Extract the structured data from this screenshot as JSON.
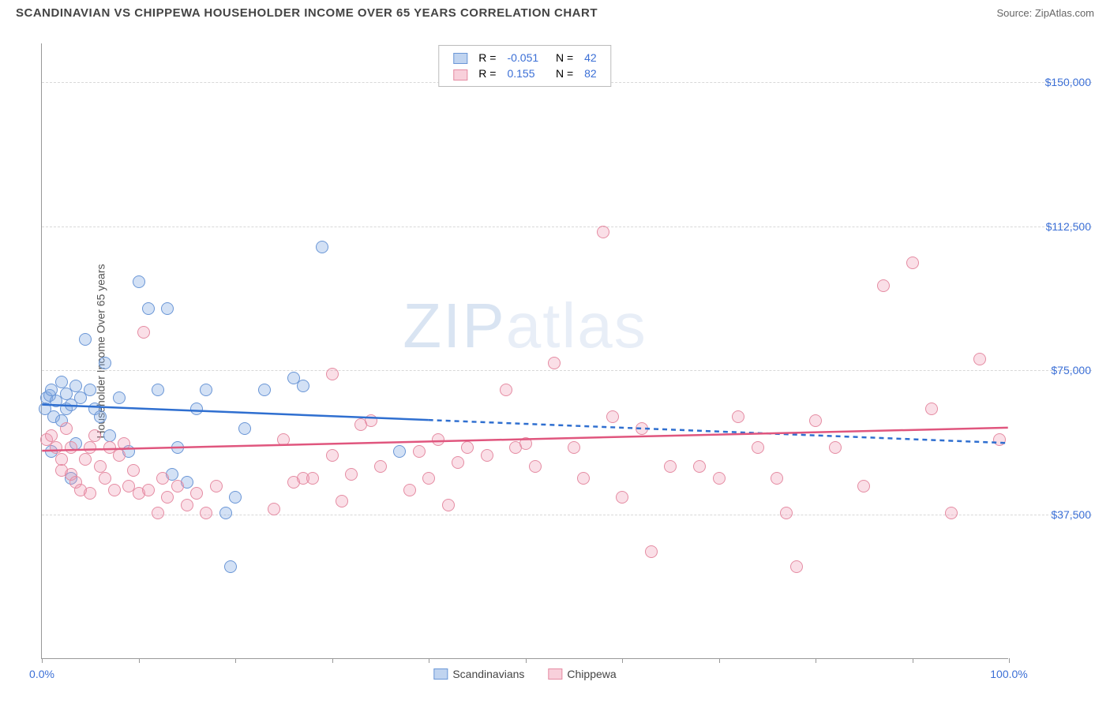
{
  "header": {
    "title": "SCANDINAVIAN VS CHIPPEWA HOUSEHOLDER INCOME OVER 65 YEARS CORRELATION CHART",
    "source": "Source: ZipAtlas.com"
  },
  "chart": {
    "type": "scatter",
    "y_axis_label": "Householder Income Over 65 years",
    "watermark": "ZIPatlas",
    "xlim": [
      0,
      100
    ],
    "ylim": [
      0,
      160000
    ],
    "x_ticks": [
      0,
      10,
      20,
      30,
      40,
      50,
      60,
      70,
      80,
      90,
      100
    ],
    "x_tick_labels": {
      "0": "0.0%",
      "100": "100.0%"
    },
    "y_gridlines": [
      37500,
      75000,
      112500,
      150000
    ],
    "y_tick_labels": {
      "37500": "$37,500",
      "75000": "$75,000",
      "112500": "$112,500",
      "150000": "$150,000"
    },
    "grid_color": "#d8d8d8",
    "background_color": "#ffffff",
    "series": [
      {
        "name": "Scandinavians",
        "color_fill": "rgba(130,170,225,0.35)",
        "color_stroke": "#6a96d6",
        "trend_color": "#2f6fd0",
        "R": "-0.051",
        "N": "42",
        "trend_solid": {
          "x1": 0,
          "y1": 66000,
          "x2": 40,
          "y2": 62000
        },
        "trend_dash": {
          "x1": 40,
          "y1": 62000,
          "x2": 100,
          "y2": 56000
        },
        "points": [
          [
            0.3,
            65000
          ],
          [
            0.5,
            68000
          ],
          [
            0.8,
            68500
          ],
          [
            1,
            54000
          ],
          [
            1,
            70000
          ],
          [
            1.2,
            63000
          ],
          [
            1.5,
            67000
          ],
          [
            2,
            62000
          ],
          [
            2,
            72000
          ],
          [
            2.5,
            69000
          ],
          [
            2.5,
            65000
          ],
          [
            3,
            66000
          ],
          [
            3,
            47000
          ],
          [
            3.5,
            56000
          ],
          [
            3.5,
            71000
          ],
          [
            4,
            68000
          ],
          [
            4.5,
            83000
          ],
          [
            5,
            70000
          ],
          [
            5.5,
            65000
          ],
          [
            6,
            63000
          ],
          [
            6.5,
            77000
          ],
          [
            7,
            58000
          ],
          [
            8,
            68000
          ],
          [
            9,
            54000
          ],
          [
            10,
            98000
          ],
          [
            11,
            91000
          ],
          [
            12,
            70000
          ],
          [
            13,
            91000
          ],
          [
            13.5,
            48000
          ],
          [
            14,
            55000
          ],
          [
            15,
            46000
          ],
          [
            16,
            65000
          ],
          [
            17,
            70000
          ],
          [
            19,
            38000
          ],
          [
            19.5,
            24000
          ],
          [
            20,
            42000
          ],
          [
            21,
            60000
          ],
          [
            23,
            70000
          ],
          [
            26,
            73000
          ],
          [
            27,
            71000
          ],
          [
            29,
            107000
          ],
          [
            37,
            54000
          ]
        ]
      },
      {
        "name": "Chippewa",
        "color_fill": "rgba(240,150,175,0.3)",
        "color_stroke": "#e58ca3",
        "trend_color": "#e0567e",
        "R": "0.155",
        "N": "82",
        "trend_solid": {
          "x1": 0,
          "y1": 54000,
          "x2": 100,
          "y2": 60000
        },
        "trend_dash": null,
        "points": [
          [
            0.5,
            57000
          ],
          [
            1,
            58000
          ],
          [
            1.5,
            55000
          ],
          [
            2,
            49000
          ],
          [
            2,
            52000
          ],
          [
            2.5,
            60000
          ],
          [
            3,
            55000
          ],
          [
            3,
            48000
          ],
          [
            3.5,
            46000
          ],
          [
            4,
            44000
          ],
          [
            4.5,
            52000
          ],
          [
            5,
            55000
          ],
          [
            5,
            43000
          ],
          [
            5.5,
            58000
          ],
          [
            6,
            50000
          ],
          [
            6.5,
            47000
          ],
          [
            7,
            55000
          ],
          [
            7.5,
            44000
          ],
          [
            8,
            53000
          ],
          [
            8.5,
            56000
          ],
          [
            9,
            45000
          ],
          [
            9.5,
            49000
          ],
          [
            10,
            43000
          ],
          [
            10.5,
            85000
          ],
          [
            11,
            44000
          ],
          [
            12,
            38000
          ],
          [
            12.5,
            47000
          ],
          [
            13,
            42000
          ],
          [
            14,
            45000
          ],
          [
            15,
            40000
          ],
          [
            16,
            43000
          ],
          [
            17,
            38000
          ],
          [
            18,
            45000
          ],
          [
            24,
            39000
          ],
          [
            25,
            57000
          ],
          [
            26,
            46000
          ],
          [
            27,
            47000
          ],
          [
            28,
            47000
          ],
          [
            30,
            53000
          ],
          [
            30,
            74000
          ],
          [
            31,
            41000
          ],
          [
            32,
            48000
          ],
          [
            33,
            61000
          ],
          [
            34,
            62000
          ],
          [
            35,
            50000
          ],
          [
            38,
            44000
          ],
          [
            39,
            54000
          ],
          [
            40,
            47000
          ],
          [
            41,
            57000
          ],
          [
            42,
            40000
          ],
          [
            43,
            51000
          ],
          [
            44,
            55000
          ],
          [
            46,
            53000
          ],
          [
            48,
            70000
          ],
          [
            49,
            55000
          ],
          [
            50,
            56000
          ],
          [
            51,
            50000
          ],
          [
            53,
            77000
          ],
          [
            55,
            55000
          ],
          [
            56,
            47000
          ],
          [
            58,
            111000
          ],
          [
            59,
            63000
          ],
          [
            60,
            42000
          ],
          [
            62,
            60000
          ],
          [
            63,
            28000
          ],
          [
            65,
            50000
          ],
          [
            68,
            50000
          ],
          [
            70,
            47000
          ],
          [
            72,
            63000
          ],
          [
            74,
            55000
          ],
          [
            76,
            47000
          ],
          [
            77,
            38000
          ],
          [
            78,
            24000
          ],
          [
            80,
            62000
          ],
          [
            82,
            55000
          ],
          [
            85,
            45000
          ],
          [
            87,
            97000
          ],
          [
            90,
            103000
          ],
          [
            92,
            65000
          ],
          [
            94,
            38000
          ],
          [
            97,
            78000
          ],
          [
            99,
            57000
          ]
        ]
      }
    ],
    "legend_bottom": [
      "Scandinavians",
      "Chippewa"
    ]
  }
}
